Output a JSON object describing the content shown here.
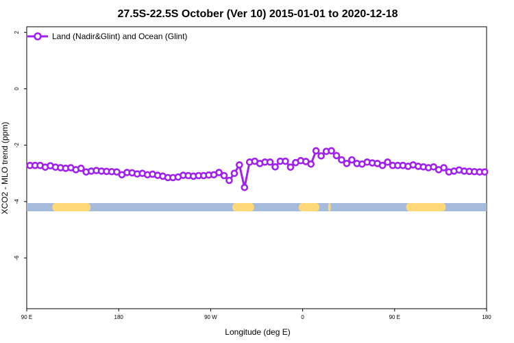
{
  "chart_data": {
    "type": "line",
    "title": "27.5S-22.5S October (Ver 10)   2015-01-01 to 2020-12-18",
    "xlabel": "Longitude (deg E)",
    "ylabel": "XCO2 - MLO trend (ppm)",
    "xlim": [
      90,
      450
    ],
    "ylim": [
      -7.8,
      2.2
    ],
    "x_ticks": [
      {
        "value": 90,
        "label": "90 E"
      },
      {
        "value": 162,
        "label": "180"
      },
      {
        "value": 234,
        "label": "90 W"
      },
      {
        "value": 306,
        "label": "0"
      },
      {
        "value": 378,
        "label": "90 E"
      },
      {
        "value": 450,
        "label": "180"
      }
    ],
    "y_ticks": [
      {
        "value": 2,
        "label": "2"
      },
      {
        "value": 0,
        "label": "0"
      },
      {
        "value": -2,
        "label": "-2"
      },
      {
        "value": -4,
        "label": "-4"
      },
      {
        "value": -6,
        "label": "-6"
      }
    ],
    "grid": false,
    "legend_position": "top-left",
    "series": [
      {
        "name": "Land (Nadir&Glint) and Ocean (Glint)",
        "color": "#a020f0",
        "x": [
          92.5,
          96.5,
          100.5,
          104.5,
          108.5,
          112.5,
          116.5,
          120.5,
          124.5,
          128.5,
          132.5,
          136.5,
          140.5,
          144.5,
          148.5,
          152.5,
          156.5,
          160.5,
          164.5,
          168.5,
          172.5,
          176.5,
          180.5,
          184.5,
          188.5,
          192.5,
          196.5,
          200.5,
          204.5,
          208.5,
          212.5,
          216.5,
          220.5,
          224.5,
          228.5,
          232.5,
          236.5,
          240.5,
          244.5,
          248.5,
          252.5,
          256.5,
          260.5,
          264.5,
          268.5,
          272.5,
          276.5,
          280.5,
          284.5,
          288.5,
          292.5,
          296.5,
          300.5,
          304.5,
          308.5,
          312.5,
          316.5,
          320.5,
          324.5,
          328.5,
          332.5,
          336.5,
          340.5,
          344.5,
          348.5,
          352.5,
          356.5,
          360.5,
          364.5,
          368.5,
          372.5,
          376.5,
          380.5,
          384.5,
          388.5,
          392.5,
          396.5,
          400.5,
          404.5,
          408.5,
          412.5,
          416.5,
          420.5,
          424.5,
          428.5,
          432.5,
          436.5,
          440.5,
          444.5,
          448.5
        ],
        "values": [
          -2.72,
          -2.72,
          -2.72,
          -2.78,
          -2.73,
          -2.78,
          -2.8,
          -2.82,
          -2.8,
          -2.87,
          -2.82,
          -2.95,
          -2.92,
          -2.9,
          -2.92,
          -2.93,
          -2.94,
          -2.95,
          -3.05,
          -2.97,
          -2.98,
          -3.02,
          -3.0,
          -3.05,
          -3.03,
          -3.07,
          -3.1,
          -3.15,
          -3.15,
          -3.13,
          -3.07,
          -3.08,
          -3.1,
          -3.08,
          -3.08,
          -3.06,
          -3.05,
          -2.97,
          -3.08,
          -3.25,
          -3.0,
          -2.7,
          -3.5,
          -2.6,
          -2.57,
          -2.65,
          -2.6,
          -2.6,
          -2.77,
          -2.57,
          -2.57,
          -2.78,
          -2.62,
          -2.55,
          -2.58,
          -2.67,
          -2.2,
          -2.38,
          -2.22,
          -2.2,
          -2.37,
          -2.52,
          -2.65,
          -2.52,
          -2.65,
          -2.67,
          -2.6,
          -2.63,
          -2.65,
          -2.72,
          -2.6,
          -2.72,
          -2.72,
          -2.72,
          -2.75,
          -2.7,
          -2.75,
          -2.77,
          -2.8,
          -2.77,
          -2.87,
          -2.8,
          -2.95,
          -2.92,
          -2.88,
          -2.92,
          -2.93,
          -2.94,
          -2.95,
          -2.95
        ]
      }
    ],
    "land_ocean_band": {
      "y": -4.2,
      "ocean_color": "#a4bbdb",
      "land_color": "#ffd87a",
      "land_segments": [
        [
          110,
          140
        ],
        [
          251,
          268
        ],
        [
          303,
          319
        ],
        [
          326,
          328
        ],
        [
          387,
          418
        ]
      ]
    }
  }
}
